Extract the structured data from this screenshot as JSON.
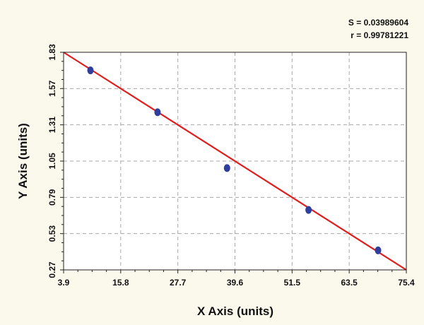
{
  "chart_data": {
    "type": "scatter",
    "title": "",
    "xlabel": "X Axis (units)",
    "ylabel": "Y Axis (units)",
    "xlim": [
      3.9,
      75.4
    ],
    "ylim": [
      0.27,
      1.83
    ],
    "x_ticks": [
      "3.9",
      "15.8",
      "27.7",
      "39.6",
      "51.5",
      "63.5",
      "75.4"
    ],
    "y_ticks": [
      "0.27",
      "0.53",
      "0.79",
      "1.05",
      "1.31",
      "1.57",
      "1.83"
    ],
    "grid": true,
    "stats": {
      "s_text": "S = 0.03989604",
      "r_text": "r = 0.99781221"
    },
    "series": [
      {
        "type": "scatter",
        "color": "#2e3f9e",
        "points": [
          {
            "x": 9.5,
            "y": 1.7
          },
          {
            "x": 23.5,
            "y": 1.4
          },
          {
            "x": 38.0,
            "y": 1.0
          },
          {
            "x": 55.0,
            "y": 0.7
          },
          {
            "x": 69.5,
            "y": 0.41
          }
        ]
      },
      {
        "type": "line",
        "color": "#e01e1e",
        "points": [
          {
            "x": 3.9,
            "y": 1.83
          },
          {
            "x": 75.4,
            "y": 0.27
          }
        ]
      }
    ]
  }
}
